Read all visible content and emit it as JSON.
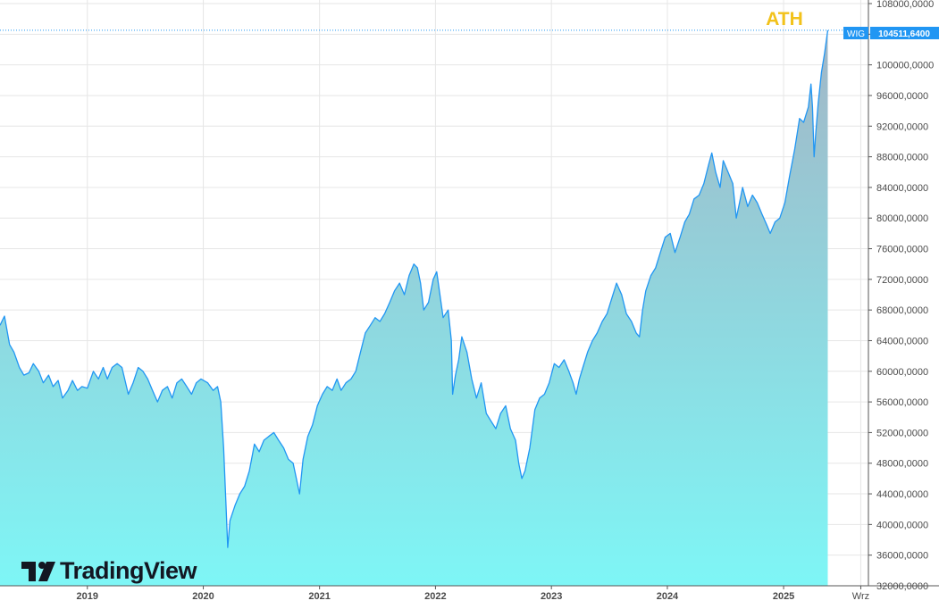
{
  "app": {
    "watermark_text": "TradingView",
    "watermark_icon": "tradingview-logo-icon"
  },
  "annotation": {
    "label": "ATH",
    "color": "#f2c21b"
  },
  "price_tag": {
    "symbol": "WIG",
    "value_text": "104511,6400",
    "color": "#2196f3"
  },
  "colors": {
    "line": "#2196f3",
    "fill_top": "#a2b6c6",
    "fill_bottom": "#7ef6f6",
    "grid": "#e6e6e6"
  },
  "chart_data": {
    "type": "area",
    "title": "",
    "xlabel": "",
    "ylabel": "",
    "series": [
      {
        "name": "WIG",
        "points": [
          [
            "2018-04-01",
            66000
          ],
          [
            "2018-04-15",
            67200
          ],
          [
            "2018-05-01",
            63500
          ],
          [
            "2018-05-15",
            62500
          ],
          [
            "2018-06-01",
            60500
          ],
          [
            "2018-06-15",
            59500
          ],
          [
            "2018-07-01",
            59800
          ],
          [
            "2018-07-15",
            61000
          ],
          [
            "2018-08-01",
            60000
          ],
          [
            "2018-08-15",
            58500
          ],
          [
            "2018-09-01",
            59500
          ],
          [
            "2018-09-15",
            58000
          ],
          [
            "2018-10-01",
            58800
          ],
          [
            "2018-10-15",
            56500
          ],
          [
            "2018-11-01",
            57500
          ],
          [
            "2018-11-15",
            58800
          ],
          [
            "2018-12-01",
            57500
          ],
          [
            "2018-12-15",
            58000
          ],
          [
            "2019-01-01",
            57800
          ],
          [
            "2019-01-20",
            60000
          ],
          [
            "2019-02-05",
            59000
          ],
          [
            "2019-02-20",
            60500
          ],
          [
            "2019-03-05",
            59000
          ],
          [
            "2019-03-20",
            60500
          ],
          [
            "2019-04-05",
            61000
          ],
          [
            "2019-04-20",
            60500
          ],
          [
            "2019-05-10",
            57000
          ],
          [
            "2019-05-25",
            58500
          ],
          [
            "2019-06-10",
            60500
          ],
          [
            "2019-06-25",
            60000
          ],
          [
            "2019-07-10",
            59000
          ],
          [
            "2019-07-25",
            57500
          ],
          [
            "2019-08-10",
            56000
          ],
          [
            "2019-08-25",
            57500
          ],
          [
            "2019-09-10",
            58000
          ],
          [
            "2019-09-25",
            56500
          ],
          [
            "2019-10-10",
            58500
          ],
          [
            "2019-10-25",
            59000
          ],
          [
            "2019-11-10",
            58000
          ],
          [
            "2019-11-25",
            57000
          ],
          [
            "2019-12-10",
            58500
          ],
          [
            "2019-12-25",
            59000
          ],
          [
            "2020-01-15",
            58500
          ],
          [
            "2020-02-01",
            57500
          ],
          [
            "2020-02-15",
            58000
          ],
          [
            "2020-02-25",
            56000
          ],
          [
            "2020-03-05",
            50000
          ],
          [
            "2020-03-12",
            43000
          ],
          [
            "2020-03-18",
            37000
          ],
          [
            "2020-03-25",
            40500
          ],
          [
            "2020-04-10",
            42500
          ],
          [
            "2020-04-25",
            44000
          ],
          [
            "2020-05-10",
            45000
          ],
          [
            "2020-05-25",
            47000
          ],
          [
            "2020-06-10",
            50500
          ],
          [
            "2020-06-25",
            49500
          ],
          [
            "2020-07-10",
            51000
          ],
          [
            "2020-07-25",
            51500
          ],
          [
            "2020-08-10",
            52000
          ],
          [
            "2020-08-25",
            51000
          ],
          [
            "2020-09-10",
            50000
          ],
          [
            "2020-09-25",
            48500
          ],
          [
            "2020-10-10",
            48000
          ],
          [
            "2020-10-20",
            46000
          ],
          [
            "2020-10-30",
            44000
          ],
          [
            "2020-11-10",
            48500
          ],
          [
            "2020-11-25",
            51500
          ],
          [
            "2020-12-10",
            53000
          ],
          [
            "2020-12-25",
            55500
          ],
          [
            "2021-01-10",
            57000
          ],
          [
            "2021-01-25",
            58000
          ],
          [
            "2021-02-10",
            57500
          ],
          [
            "2021-02-25",
            59000
          ],
          [
            "2021-03-10",
            57500
          ],
          [
            "2021-03-25",
            58500
          ],
          [
            "2021-04-10",
            59000
          ],
          [
            "2021-04-25",
            60000
          ],
          [
            "2021-05-10",
            62500
          ],
          [
            "2021-05-25",
            65000
          ],
          [
            "2021-06-10",
            66000
          ],
          [
            "2021-06-25",
            67000
          ],
          [
            "2021-07-10",
            66500
          ],
          [
            "2021-07-25",
            67500
          ],
          [
            "2021-08-10",
            69000
          ],
          [
            "2021-08-25",
            70500
          ],
          [
            "2021-09-10",
            71500
          ],
          [
            "2021-09-25",
            70000
          ],
          [
            "2021-10-10",
            72500
          ],
          [
            "2021-10-25",
            74000
          ],
          [
            "2021-11-05",
            73500
          ],
          [
            "2021-11-15",
            71500
          ],
          [
            "2021-11-25",
            68000
          ],
          [
            "2021-12-10",
            69000
          ],
          [
            "2021-12-25",
            72000
          ],
          [
            "2022-01-05",
            73000
          ],
          [
            "2022-01-15",
            70000
          ],
          [
            "2022-01-25",
            67000
          ],
          [
            "2022-02-10",
            68000
          ],
          [
            "2022-02-20",
            64000
          ],
          [
            "2022-02-24",
            57000
          ],
          [
            "2022-03-05",
            59500
          ],
          [
            "2022-03-15",
            61500
          ],
          [
            "2022-03-25",
            64500
          ],
          [
            "2022-04-10",
            62500
          ],
          [
            "2022-04-25",
            59000
          ],
          [
            "2022-05-10",
            56500
          ],
          [
            "2022-05-25",
            58500
          ],
          [
            "2022-06-10",
            54500
          ],
          [
            "2022-06-25",
            53500
          ],
          [
            "2022-07-10",
            52500
          ],
          [
            "2022-07-25",
            54500
          ],
          [
            "2022-08-10",
            55500
          ],
          [
            "2022-08-25",
            52500
          ],
          [
            "2022-09-10",
            51000
          ],
          [
            "2022-09-20",
            48000
          ],
          [
            "2022-09-30",
            46000
          ],
          [
            "2022-10-10",
            47000
          ],
          [
            "2022-10-25",
            50000
          ],
          [
            "2022-11-10",
            55000
          ],
          [
            "2022-11-25",
            56500
          ],
          [
            "2022-12-10",
            57000
          ],
          [
            "2022-12-25",
            58500
          ],
          [
            "2023-01-10",
            61000
          ],
          [
            "2023-01-25",
            60500
          ],
          [
            "2023-02-10",
            61500
          ],
          [
            "2023-02-25",
            60000
          ],
          [
            "2023-03-10",
            58500
          ],
          [
            "2023-03-20",
            57000
          ],
          [
            "2023-03-30",
            59000
          ],
          [
            "2023-04-10",
            60500
          ],
          [
            "2023-04-25",
            62500
          ],
          [
            "2023-05-10",
            64000
          ],
          [
            "2023-05-25",
            65000
          ],
          [
            "2023-06-10",
            66500
          ],
          [
            "2023-06-25",
            67500
          ],
          [
            "2023-07-10",
            69500
          ],
          [
            "2023-07-25",
            71500
          ],
          [
            "2023-08-10",
            70000
          ],
          [
            "2023-08-25",
            67500
          ],
          [
            "2023-09-10",
            66500
          ],
          [
            "2023-09-25",
            65000
          ],
          [
            "2023-10-05",
            64500
          ],
          [
            "2023-10-15",
            68000
          ],
          [
            "2023-10-25",
            70500
          ],
          [
            "2023-11-10",
            72500
          ],
          [
            "2023-11-25",
            73500
          ],
          [
            "2023-12-10",
            75500
          ],
          [
            "2023-12-25",
            77500
          ],
          [
            "2024-01-10",
            78000
          ],
          [
            "2024-01-25",
            75500
          ],
          [
            "2024-02-10",
            77500
          ],
          [
            "2024-02-25",
            79500
          ],
          [
            "2024-03-10",
            80500
          ],
          [
            "2024-03-25",
            82500
          ],
          [
            "2024-04-10",
            83000
          ],
          [
            "2024-04-25",
            84500
          ],
          [
            "2024-05-10",
            87000
          ],
          [
            "2024-05-20",
            88500
          ],
          [
            "2024-06-01",
            86000
          ],
          [
            "2024-06-15",
            84000
          ],
          [
            "2024-06-25",
            87500
          ],
          [
            "2024-07-10",
            86000
          ],
          [
            "2024-07-25",
            84500
          ],
          [
            "2024-08-05",
            80000
          ],
          [
            "2024-08-15",
            82000
          ],
          [
            "2024-08-25",
            84000
          ],
          [
            "2024-09-10",
            81500
          ],
          [
            "2024-09-25",
            83000
          ],
          [
            "2024-10-10",
            82000
          ],
          [
            "2024-10-25",
            80500
          ],
          [
            "2024-11-10",
            79000
          ],
          [
            "2024-11-20",
            78000
          ],
          [
            "2024-12-05",
            79500
          ],
          [
            "2024-12-20",
            80000
          ],
          [
            "2025-01-05",
            82000
          ],
          [
            "2025-01-20",
            85500
          ],
          [
            "2025-02-05",
            89000
          ],
          [
            "2025-02-20",
            93000
          ],
          [
            "2025-03-05",
            92500
          ],
          [
            "2025-03-20",
            94500
          ],
          [
            "2025-03-28",
            97500
          ],
          [
            "2025-04-02",
            94500
          ],
          [
            "2025-04-07",
            88000
          ],
          [
            "2025-04-12",
            91000
          ],
          [
            "2025-04-20",
            95000
          ],
          [
            "2025-04-30",
            99000
          ],
          [
            "2025-05-10",
            101500
          ],
          [
            "2025-05-20",
            104511.64
          ]
        ]
      }
    ],
    "ylim": [
      32000,
      108000
    ],
    "xlim": [
      "2018-04-01",
      "2025-09-25"
    ],
    "yticks": [
      32000,
      36000,
      40000,
      44000,
      48000,
      52000,
      56000,
      60000,
      64000,
      68000,
      72000,
      76000,
      80000,
      84000,
      88000,
      92000,
      96000,
      100000,
      104000,
      108000
    ],
    "ytick_labels": [
      "32000,0000",
      "36000,0000",
      "40000,0000",
      "44000,0000",
      "48000,0000",
      "52000,0000",
      "56000,0000",
      "60000,0000",
      "64000,0000",
      "68000,0000",
      "72000,0000",
      "76000,0000",
      "80000,0000",
      "84000,0000",
      "88000,0000",
      "92000,0000",
      "96000,0000",
      "100000,0000",
      "104000,0000",
      "108000,0000"
    ],
    "xticks": [
      {
        "date": "2019-01-01",
        "label": "2019",
        "bold": true
      },
      {
        "date": "2020-01-01",
        "label": "2020",
        "bold": true
      },
      {
        "date": "2021-01-01",
        "label": "2021",
        "bold": true
      },
      {
        "date": "2022-01-01",
        "label": "2022",
        "bold": true
      },
      {
        "date": "2023-01-01",
        "label": "2023",
        "bold": true
      },
      {
        "date": "2024-01-01",
        "label": "2024",
        "bold": true
      },
      {
        "date": "2025-01-01",
        "label": "2025",
        "bold": true
      },
      {
        "date": "2025-09-01",
        "label": "Wrz",
        "bold": false
      }
    ],
    "grid": true,
    "last_value": 104511.64
  }
}
